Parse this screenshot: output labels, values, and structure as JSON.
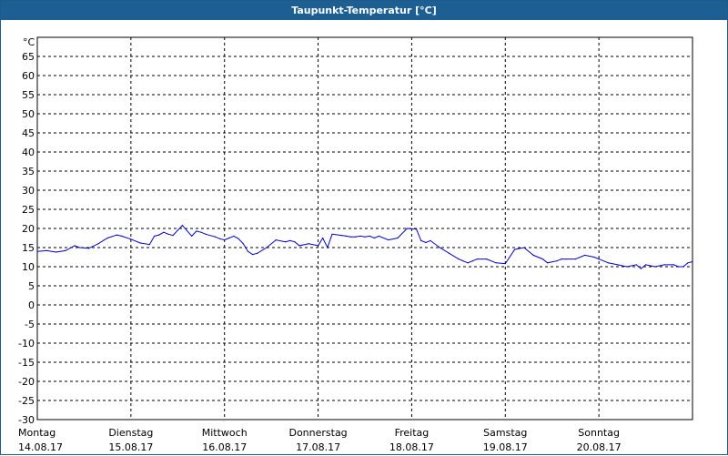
{
  "window": {
    "title": "Taupunkt-Temperatur [°C]"
  },
  "chart_data": {
    "type": "line",
    "title": "Taupunkt-Temperatur [°C]",
    "y_unit_label": "°C",
    "ylim": [
      -30,
      70
    ],
    "y_ticks": [
      65,
      60,
      55,
      50,
      45,
      40,
      35,
      30,
      25,
      20,
      15,
      10,
      5,
      0,
      -5,
      -10,
      -15,
      -20,
      -25,
      -30
    ],
    "x_ticks": [
      {
        "day": "Montag",
        "date": "14.08.17"
      },
      {
        "day": "Dienstag",
        "date": "15.08.17"
      },
      {
        "day": "Mittwoch",
        "date": "16.08.17"
      },
      {
        "day": "Donnerstag",
        "date": "17.08.17"
      },
      {
        "day": "Freitag",
        "date": "18.08.17"
      },
      {
        "day": "Samstag",
        "date": "19.08.17"
      },
      {
        "day": "Sonntag",
        "date": "20.08.17"
      }
    ],
    "grid": true,
    "line_color": "#0000c8",
    "x_range_days": [
      0,
      7
    ],
    "series": [
      {
        "x": [
          0.0,
          0.1,
          0.2,
          0.3,
          0.4,
          0.45,
          0.55,
          0.65,
          0.75,
          0.85,
          0.9,
          1.0,
          1.1,
          1.2,
          1.25,
          1.3,
          1.35,
          1.4,
          1.45,
          1.55,
          1.65,
          1.7,
          1.75,
          1.8,
          1.9,
          1.95,
          2.0,
          2.05,
          2.1,
          2.15,
          2.2,
          2.25,
          2.3,
          2.35,
          2.45,
          2.55,
          2.65,
          2.7,
          2.75,
          2.8,
          2.9,
          3.0,
          3.05,
          3.1,
          3.15,
          3.25,
          3.3,
          3.35,
          3.4,
          3.45,
          3.5,
          3.55,
          3.6,
          3.65,
          3.75,
          3.85,
          3.95,
          4.05,
          4.1,
          4.15,
          4.2,
          4.3,
          4.4,
          4.5,
          4.55,
          4.6,
          4.65,
          4.7,
          4.8,
          4.9,
          5.0,
          5.1,
          5.2,
          5.3,
          5.4,
          5.45,
          5.55,
          5.6,
          5.65,
          5.75,
          5.85,
          5.95,
          6.0,
          6.1,
          6.2,
          6.3,
          6.4,
          6.45,
          6.5,
          6.6,
          6.7,
          6.8,
          6.85,
          6.9,
          6.95,
          7.0
        ],
        "y": [
          14.0,
          14.2,
          13.8,
          14.2,
          15.5,
          15.0,
          14.8,
          16.0,
          17.5,
          18.3,
          18.0,
          17.2,
          16.2,
          15.8,
          18.0,
          18.3,
          19.0,
          18.5,
          18.2,
          20.8,
          18.0,
          19.3,
          19.0,
          18.5,
          17.8,
          17.3,
          17.0,
          17.5,
          18.0,
          17.3,
          16.0,
          14.0,
          13.2,
          13.5,
          15.0,
          17.0,
          16.5,
          16.8,
          16.5,
          15.5,
          16.0,
          15.5,
          17.5,
          15.0,
          18.5,
          18.2,
          18.0,
          17.8,
          17.8,
          18.0,
          17.8,
          18.0,
          17.5,
          18.0,
          17.0,
          17.5,
          20.0,
          19.8,
          16.8,
          16.3,
          16.8,
          15.0,
          13.5,
          12.0,
          11.5,
          11.0,
          11.5,
          12.0,
          12.0,
          11.0,
          10.8,
          14.5,
          15.0,
          13.0,
          12.0,
          11.0,
          11.5,
          12.0,
          12.0,
          12.0,
          13.0,
          12.5,
          12.0,
          11.0,
          10.5,
          10.0,
          10.5,
          9.5,
          10.5,
          10.0,
          10.5,
          10.5,
          10.0,
          10.0,
          11.0,
          11.3
        ]
      }
    ]
  }
}
